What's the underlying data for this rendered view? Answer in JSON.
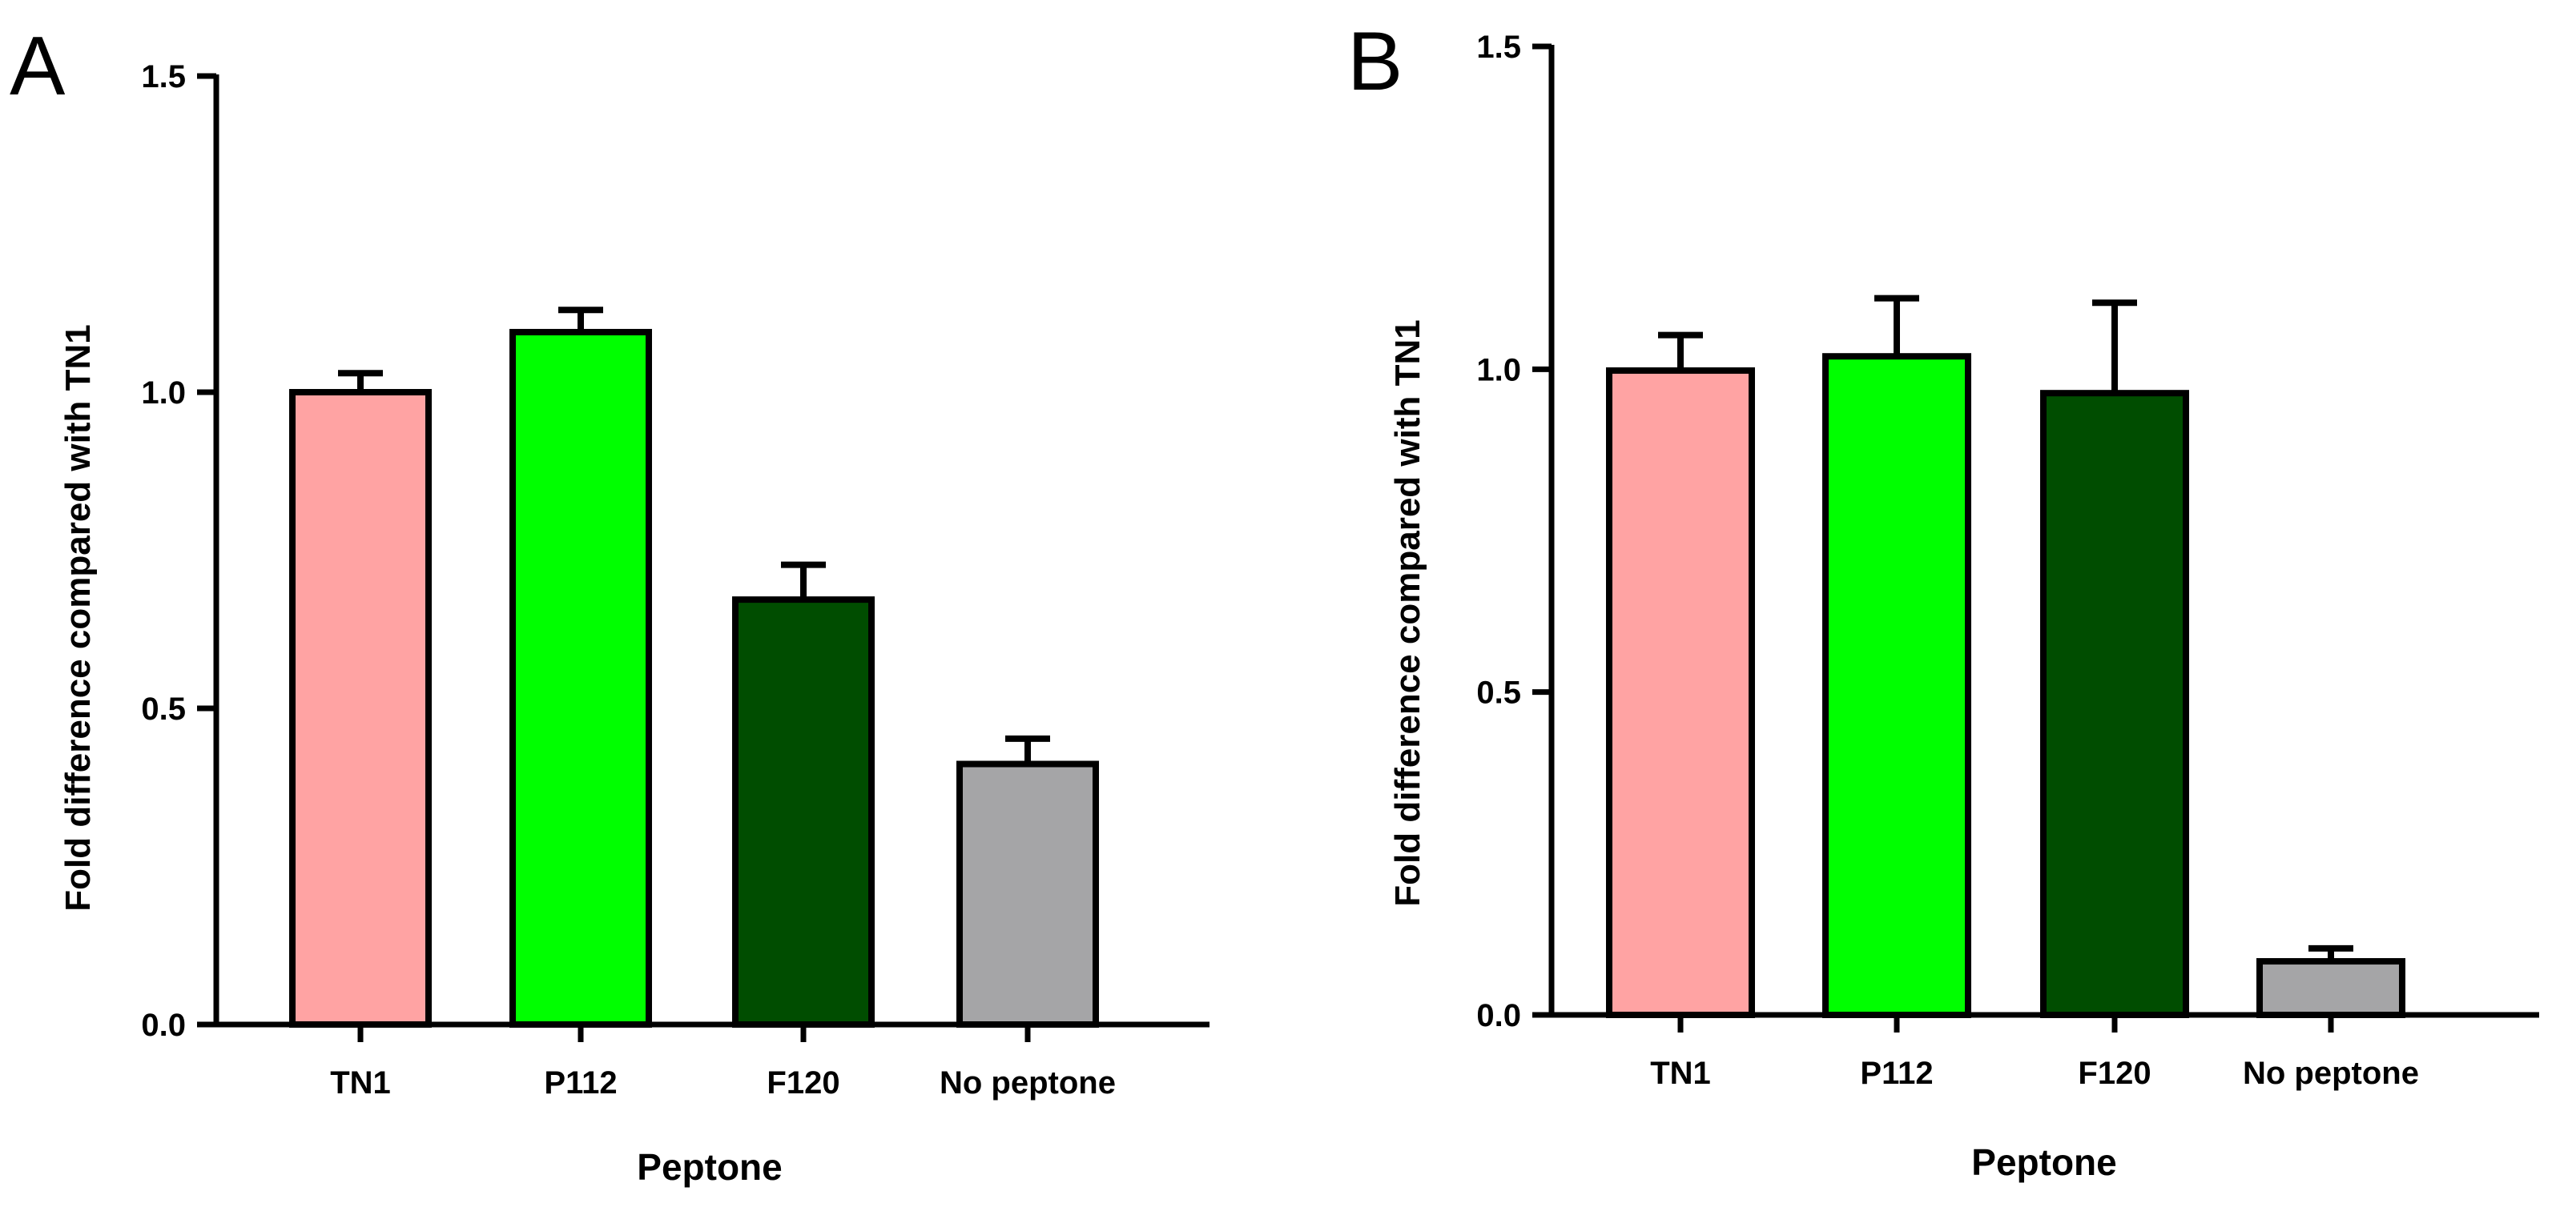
{
  "chart_data": [
    {
      "type": "bar",
      "panel": "A",
      "categories": [
        "TN1",
        "P112",
        "F120",
        "No peptone"
      ],
      "values": [
        1.0,
        1.095,
        0.672,
        0.412
      ],
      "errors": [
        0.03,
        0.035,
        0.055,
        0.04
      ],
      "colors": [
        "#FFA3A3",
        "#00FF00",
        "#004D00",
        "#A5A5A7"
      ],
      "yticks": [
        "0.0",
        "0.5",
        "1.0",
        "1.5"
      ],
      "ylim": [
        0,
        1.5
      ],
      "xlabel": "Peptone",
      "ylabel": "Fold difference compared with TN1"
    },
    {
      "type": "bar",
      "panel": "B",
      "categories": [
        "TN1",
        "P112",
        "F120",
        "No peptone"
      ],
      "values": [
        0.998,
        1.02,
        0.963,
        0.083
      ],
      "errors": [
        0.055,
        0.09,
        0.14,
        0.02
      ],
      "colors": [
        "#FFA3A3",
        "#00FF00",
        "#004D00",
        "#A5A5A7"
      ],
      "yticks": [
        "0.0",
        "0.5",
        "1.0",
        "1.5"
      ],
      "ylim": [
        0,
        1.5
      ],
      "xlabel": "Peptone",
      "ylabel": "Fold difference compared with TN1"
    }
  ]
}
